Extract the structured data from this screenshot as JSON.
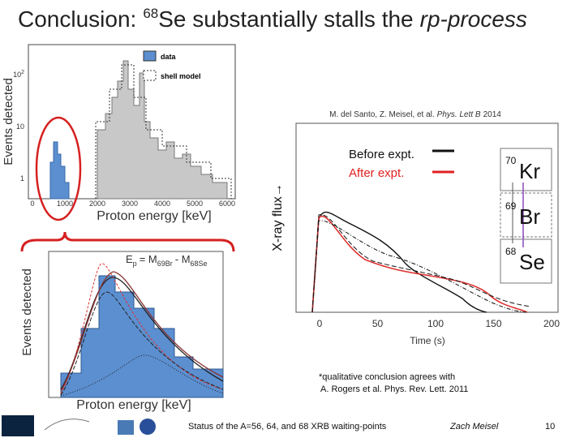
{
  "header": {
    "title": {
      "prefix": "Conclusion:",
      "mass": "68",
      "rest": "Se substantially stalls the",
      "italic": "rp-process"
    }
  },
  "spectrum_plot": {
    "y_label": "Events detected",
    "x_label": "Proton energy [keV]",
    "legend": [
      "data",
      "shell model"
    ],
    "y_ticks": [
      {
        "base": "10",
        "exp": "2"
      },
      {
        "base": "10",
        "exp": ""
      },
      {
        "base": "1",
        "exp": ""
      }
    ],
    "x_ticks": [
      "0",
      "1000",
      "2000",
      "3000",
      "4000",
      "5000",
      "6000"
    ]
  },
  "zoom_plot": {
    "y_label": "Events detected",
    "x_label": "Proton energy [keV]",
    "formula": {
      "lhs": "E",
      "lhs_sub": "p",
      "eq": "= M",
      "sub1": "69Br",
      "minus": "- M",
      "sub2": "68Se"
    }
  },
  "flux_plot": {
    "citation": {
      "authors": "M. del Santo, Z. Meisel, et al.",
      "journal": "Phys. Lett B",
      "year": "2014"
    },
    "y_label": "X-ray flux→",
    "x_label": "Time (s)",
    "legend": [
      "Before expt.",
      "After expt."
    ],
    "x_ticks": [
      "0",
      "50",
      "100",
      "150",
      "200"
    ],
    "nuclei": [
      {
        "mass": "70",
        "symbol": "Kr"
      },
      {
        "mass": "69",
        "symbol": "Br"
      },
      {
        "mass": "68",
        "symbol": "Se"
      }
    ]
  },
  "note": [
    "*qualitative conclusion agrees with",
    "A. Rogers et al. Phys. Rev. Lett. 2011"
  ],
  "footer": {
    "status": "Status of the A=56, 64, and 68 XRB waiting-points",
    "author": "Zach Meisel",
    "page": "10"
  }
}
